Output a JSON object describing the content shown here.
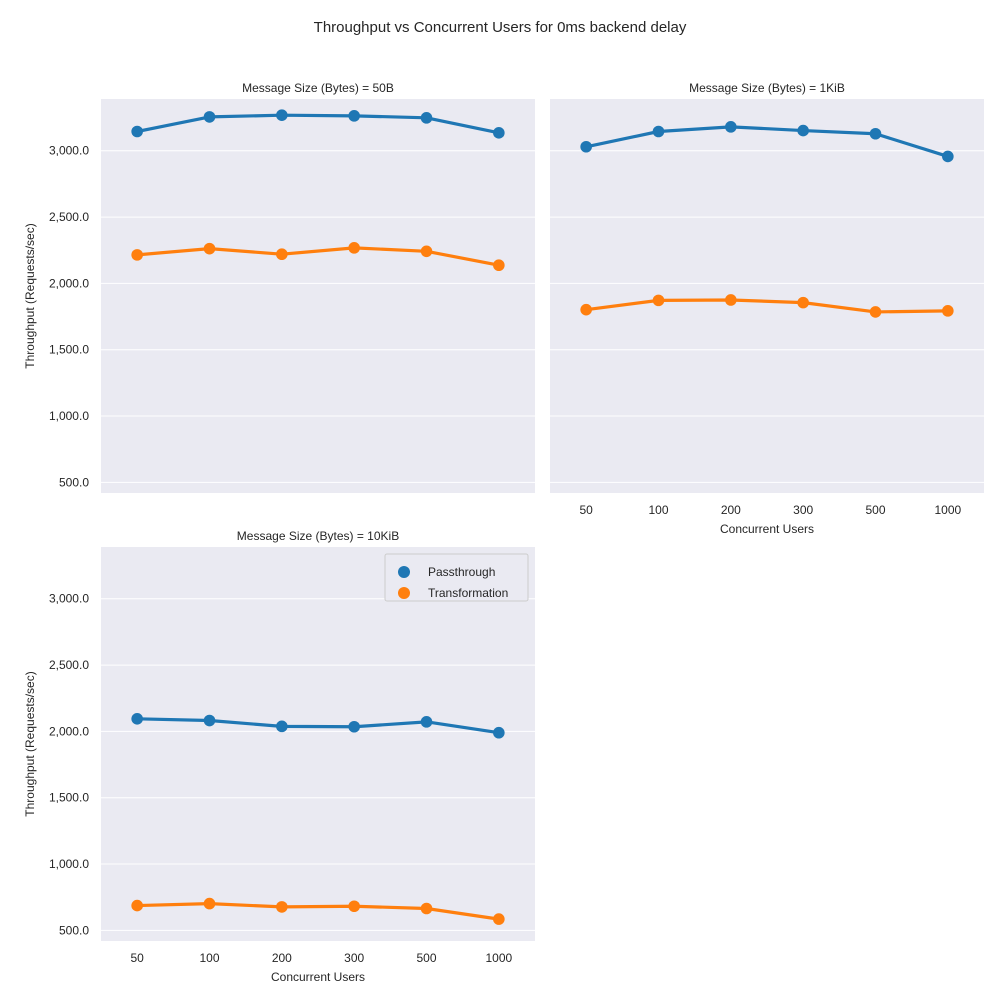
{
  "figure": {
    "title": "Throughput vs Concurrent Users for 0ms backend delay",
    "ylabel": "Throughput (Requests/sec)",
    "xlabel": "Concurrent Users"
  },
  "legend": {
    "placement": "top-right of third panel",
    "entries": [
      {
        "name": "Passthrough",
        "color": "#1f77b4"
      },
      {
        "name": "Transformation",
        "color": "#ff7f0e"
      }
    ]
  },
  "colors": {
    "panel_background": "#eaeaf2",
    "grid": "#ffffff",
    "passthrough": "#1f77b4",
    "transformation": "#ff7f0e"
  },
  "chart_data": [
    {
      "type": "line",
      "title": "Message Size (Bytes) = 50B",
      "categories": [
        "50",
        "100",
        "200",
        "300",
        "500",
        "1000"
      ],
      "xlabel": "",
      "ylabel": "Throughput (Requests/sec)",
      "ylim": [
        420,
        3390
      ],
      "yticks": [
        "500.0",
        "1,000.0",
        "1,500.0",
        "2,000.0",
        "2,500.0",
        "3,000.0"
      ],
      "grid": true,
      "series": [
        {
          "name": "Passthrough",
          "values": [
            3145,
            3255,
            3268,
            3263,
            3248,
            3135
          ]
        },
        {
          "name": "Transformation",
          "values": [
            2215,
            2262,
            2220,
            2268,
            2242,
            2137
          ]
        }
      ]
    },
    {
      "type": "line",
      "title": "Message Size (Bytes) = 1KiB",
      "categories": [
        "50",
        "100",
        "200",
        "300",
        "500",
        "1000"
      ],
      "xlabel": "Concurrent Users",
      "ylabel": "",
      "ylim": [
        420,
        3390
      ],
      "grid": true,
      "series": [
        {
          "name": "Passthrough",
          "values": [
            3030,
            3145,
            3180,
            3152,
            3128,
            2957
          ]
        },
        {
          "name": "Transformation",
          "values": [
            1802,
            1872,
            1875,
            1855,
            1785,
            1793
          ]
        }
      ]
    },
    {
      "type": "line",
      "title": "Message Size (Bytes) = 10KiB",
      "categories": [
        "50",
        "100",
        "200",
        "300",
        "500",
        "1000"
      ],
      "xlabel": "Concurrent Users",
      "ylabel": "Throughput (Requests/sec)",
      "ylim": [
        420,
        3390
      ],
      "yticks": [
        "500.0",
        "1,000.0",
        "1,500.0",
        "2,000.0",
        "2,500.0",
        "3,000.0"
      ],
      "grid": true,
      "series": [
        {
          "name": "Passthrough",
          "values": [
            2095,
            2082,
            2038,
            2035,
            2072,
            1990
          ]
        },
        {
          "name": "Transformation",
          "values": [
            687,
            702,
            677,
            682,
            665,
            585
          ]
        }
      ]
    }
  ]
}
